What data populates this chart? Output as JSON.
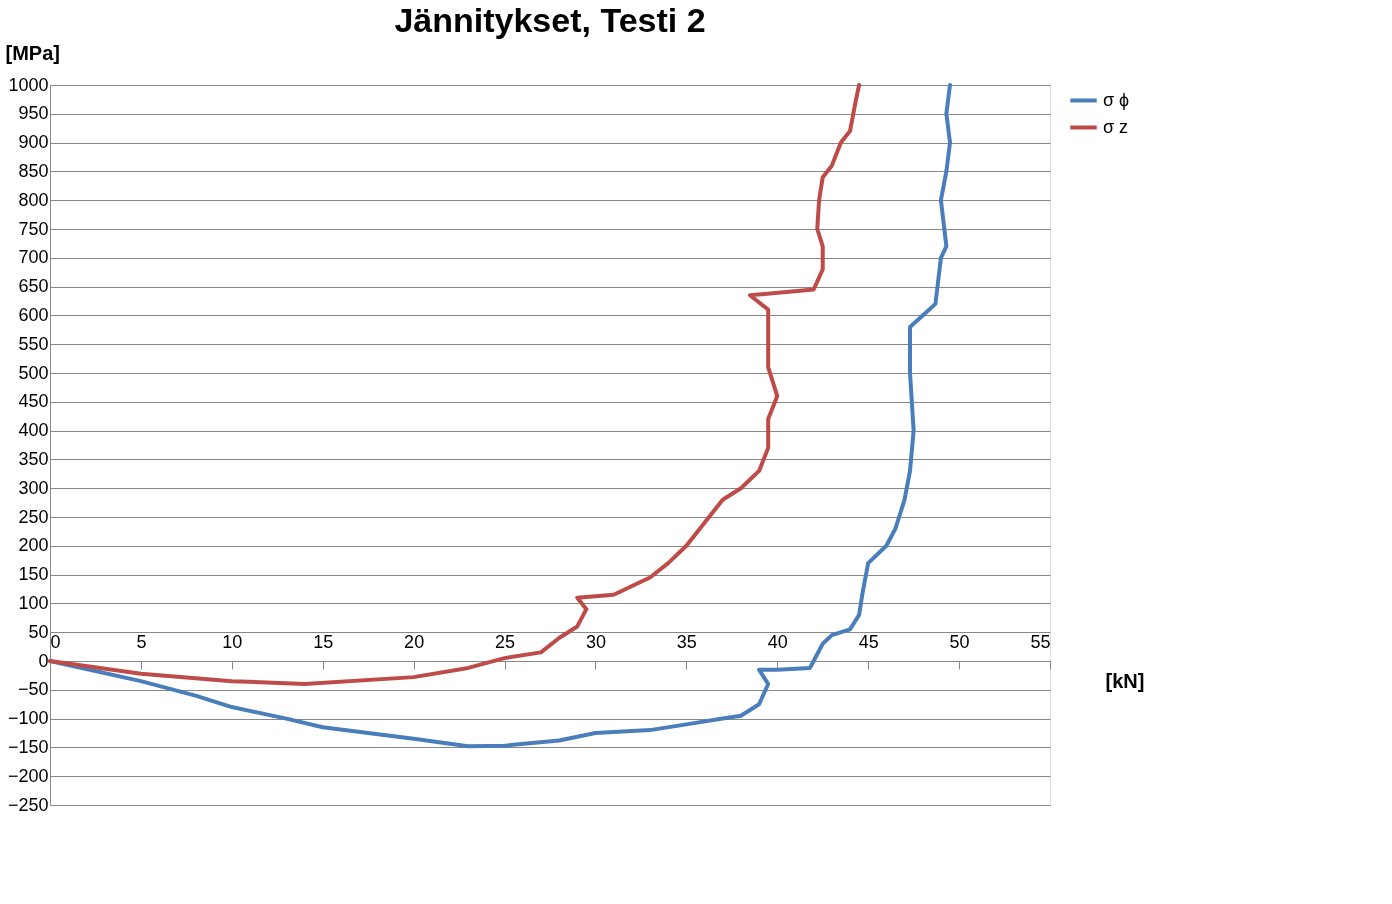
{
  "chart_data": {
    "type": "line",
    "title": "Jännitykset, Testi 2",
    "xlabel": "[kN]",
    "ylabel": "[MPa]",
    "xlim": [
      0,
      55
    ],
    "xticks": [
      0,
      5,
      10,
      15,
      20,
      25,
      30,
      35,
      40,
      45,
      50,
      55
    ],
    "ylim": [
      -250,
      1000
    ],
    "yticks": [
      -250,
      -200,
      -150,
      -100,
      -50,
      0,
      50,
      100,
      150,
      200,
      250,
      300,
      350,
      400,
      450,
      500,
      550,
      600,
      650,
      700,
      750,
      800,
      850,
      900,
      950,
      1000
    ],
    "grid": "y",
    "legend": "right",
    "marker": "none",
    "line_style": "solid",
    "series": [
      {
        "name": "σ ϕ",
        "color": "#4a7ebb",
        "x": [
          0,
          5,
          8,
          10,
          13,
          15,
          20,
          23,
          25,
          28,
          30,
          33,
          35,
          37,
          38,
          39,
          39.5,
          39,
          40,
          41.8,
          42,
          42.5,
          43,
          44,
          44.5,
          44.7,
          45,
          46,
          46.5,
          47,
          47.3,
          47.5,
          47.3,
          47.3,
          48,
          48.7,
          49,
          49.3,
          49,
          49.3,
          49.5,
          49.3,
          49.5
        ],
        "values": [
          0,
          -35,
          -60,
          -80,
          -100,
          -115,
          -135,
          -148,
          -147,
          -138,
          -125,
          -120,
          -110,
          -100,
          -95,
          -75,
          -40,
          -15,
          -15,
          -12,
          0,
          30,
          45,
          55,
          80,
          120,
          170,
          200,
          230,
          280,
          330,
          400,
          500,
          580,
          600,
          620,
          700,
          720,
          800,
          850,
          900,
          950,
          1000
        ]
      },
      {
        "name": "σ z",
        "color": "#be4b48",
        "x": [
          0,
          5,
          10,
          14,
          20,
          23,
          25,
          27,
          28,
          29,
          29.5,
          29,
          31,
          33,
          34,
          35,
          36,
          37,
          38,
          39,
          39.5,
          39.5,
          40,
          39.5,
          39.5,
          39.5,
          38.5,
          42,
          42.5,
          42.5,
          42.2,
          42.3,
          42.5,
          43,
          43.5,
          44,
          44.3,
          44.5
        ],
        "values": [
          0,
          -22,
          -35,
          -40,
          -28,
          -12,
          5,
          15,
          40,
          60,
          90,
          110,
          115,
          145,
          170,
          200,
          240,
          280,
          300,
          330,
          370,
          420,
          460,
          510,
          560,
          610,
          635,
          645,
          680,
          720,
          750,
          800,
          840,
          860,
          900,
          920,
          970,
          1000
        ]
      }
    ]
  }
}
